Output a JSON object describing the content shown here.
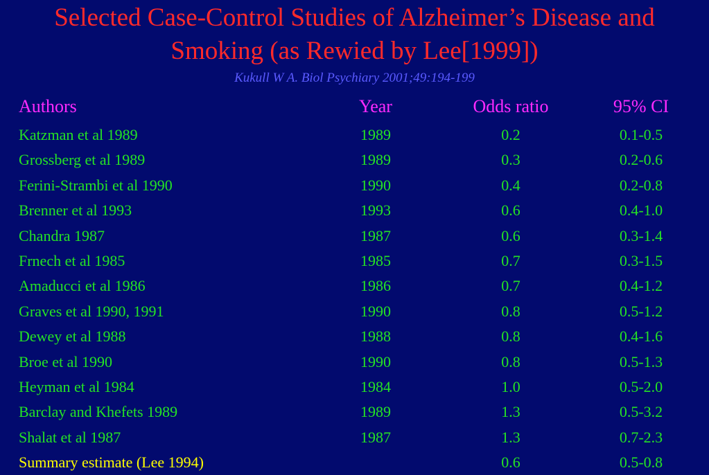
{
  "title_line_1": "Selected Case-Control Studies of Alzheimer’s Disease and",
  "title_line_2": "Smoking (as Rewied by Lee[1999])",
  "citation": "Kukull W A. Biol Psychiary 2001;49:194-199",
  "table": {
    "headers": {
      "authors": "Authors",
      "year": "Year",
      "odds_ratio": "Odds ratio",
      "ci": "95% CI"
    },
    "rows": [
      {
        "author": "Katzman et al 1989",
        "year": "1989",
        "or": "0.2",
        "ci": "0.1-0.5"
      },
      {
        "author": "Grossberg et al 1989",
        "year": "1989",
        "or": "0.3",
        "ci": "0.2-0.6"
      },
      {
        "author": "Ferini-Strambi et al 1990",
        "year": "1990",
        "or": "0.4",
        "ci": "0.2-0.8"
      },
      {
        "author": "Brenner et al 1993",
        "year": "1993",
        "or": "0.6",
        "ci": "0.4-1.0"
      },
      {
        "author": "Chandra 1987",
        "year": "1987",
        "or": "0.6",
        "ci": "0.3-1.4"
      },
      {
        "author": "Frnech et al 1985",
        "year": "1985",
        "or": "0.7",
        "ci": "0.3-1.5"
      },
      {
        "author": "Amaducci et al 1986",
        "year": "1986",
        "or": "0.7",
        "ci": "0.4-1.2"
      },
      {
        "author": "Graves et al 1990, 1991",
        "year": "1990",
        "or": "0.8",
        "ci": "0.5-1.2"
      },
      {
        "author": "Dewey et al 1988",
        "year": "1988",
        "or": "0.8",
        "ci": "0.4-1.6"
      },
      {
        "author": "Broe et al 1990",
        "year": "1990",
        "or": "0.8",
        "ci": "0.5-1.3"
      },
      {
        "author": "Heyman et al 1984",
        "year": "1984",
        "or": "1.0",
        "ci": "0.5-2.0"
      },
      {
        "author": "Barclay and Khefets 1989",
        "year": "1989",
        "or": "1.3",
        "ci": "0.5-3.2"
      },
      {
        "author": "Shalat et al 1987",
        "year": "1987",
        "or": "1.3",
        "ci": "0.7-2.3"
      }
    ],
    "summary": {
      "author": "Summary estimate (Lee 1994)",
      "year": "",
      "or": "0.6",
      "ci": "0.5-0.8"
    }
  },
  "colors": {
    "background": "#020a6e",
    "title": "#ff2a2a",
    "citation": "#5a5aff",
    "header": "#ff2aff",
    "row_text": "#24e324",
    "summary_text": "#ffff00"
  }
}
